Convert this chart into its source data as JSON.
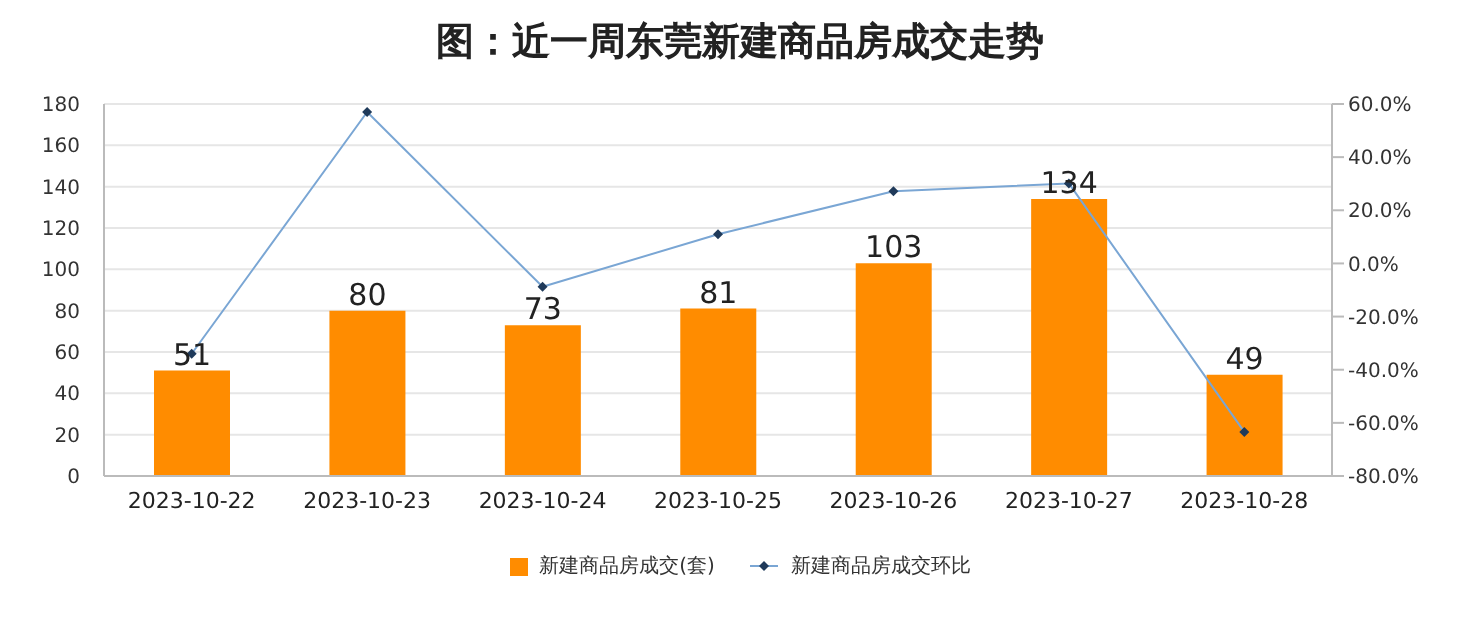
{
  "chart_data": {
    "type": "bar",
    "title": "图：近一周东莞新建商品房成交走势",
    "categories": [
      "2023-10-22",
      "2023-10-23",
      "2023-10-24",
      "2023-10-25",
      "2023-10-26",
      "2023-10-27",
      "2023-10-28"
    ],
    "series": [
      {
        "name": "新建商品房成交(套)",
        "color": "#ff8c00",
        "values": [
          51,
          80,
          73,
          81,
          103,
          134,
          49
        ],
        "value_labels": [
          "51",
          "80",
          "73",
          "81",
          "103",
          "134",
          "49"
        ]
      },
      {
        "name": "新建商品房成交环比",
        "type": "line",
        "axis": "y2",
        "color": "#7aa6d4",
        "values": [
          -34,
          57,
          -8.8,
          11,
          27.2,
          30.1,
          -63.4
        ]
      }
    ],
    "ylim": [
      0,
      180
    ],
    "yticks": [
      0,
      20,
      40,
      60,
      80,
      100,
      120,
      140,
      160,
      180
    ],
    "y2lim": [
      -80,
      60
    ],
    "y2ticks": [
      {
        "value": -80,
        "label": "-80.0%"
      },
      {
        "value": -60,
        "label": "-60.0%"
      },
      {
        "value": -40,
        "label": "-40.0%"
      },
      {
        "value": -20,
        "label": "-20.0%"
      },
      {
        "value": 0,
        "label": "0.0%"
      },
      {
        "value": 20,
        "label": "20.0%"
      },
      {
        "value": 40,
        "label": "40.0%"
      },
      {
        "value": 60,
        "label": "60.0%"
      }
    ],
    "grid": "y",
    "legend": "bottom",
    "marker": "diamond",
    "line_style": "solid"
  }
}
